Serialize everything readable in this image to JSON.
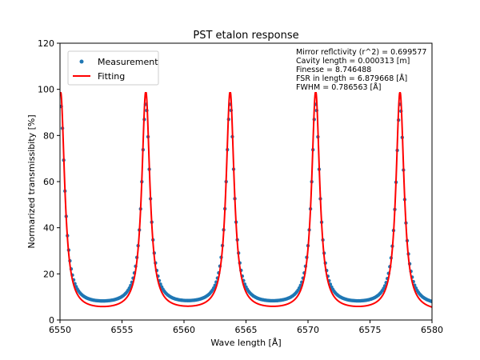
{
  "chart_data": {
    "type": "scatter",
    "title": "PST etalon response",
    "xlabel": "Wave length [Å]",
    "ylabel": "Normarized transmissibity [%]",
    "xlim": [
      6550,
      6580
    ],
    "ylim": [
      0,
      120
    ],
    "xticks": [
      6550,
      6555,
      6560,
      6565,
      6570,
      6575,
      6580
    ],
    "yticks": [
      0,
      20,
      40,
      60,
      80,
      100,
      120
    ],
    "grid": false,
    "legend": {
      "position": "top-left",
      "entries": [
        {
          "name": "Measurement",
          "marker": "circle",
          "color": "#1f77b4"
        },
        {
          "name": "Fitting",
          "marker": "line",
          "color": "#ff0000"
        }
      ]
    },
    "annotations": [
      "Mirror reflctivity (r^2) = 0.699577",
      "Cavity length = 0.000313 [m]",
      "Finesse = 8.746488",
      "FSR in length = 6.879668 [Å]",
      "FWHM = 0.786563 [Å]"
    ],
    "model": {
      "peaks": [
        6550.05,
        6556.92,
        6563.72,
        6570.62,
        6577.42
      ],
      "fit_max": 98.5,
      "fit_min": 3.2,
      "fit_hwhm": 0.39,
      "meas_max": 93.5,
      "meas_min": 5.7,
      "meas_hwhm": 0.4
    },
    "series": [
      {
        "name": "Measurement",
        "type": "scatter",
        "x_range": [
          6550,
          6580
        ],
        "x_step": 0.1,
        "color": "#1f77b4"
      },
      {
        "name": "Fitting",
        "type": "line",
        "x_range": [
          6550,
          6580
        ],
        "x_step": 0.01,
        "color": "#ff0000"
      }
    ]
  }
}
